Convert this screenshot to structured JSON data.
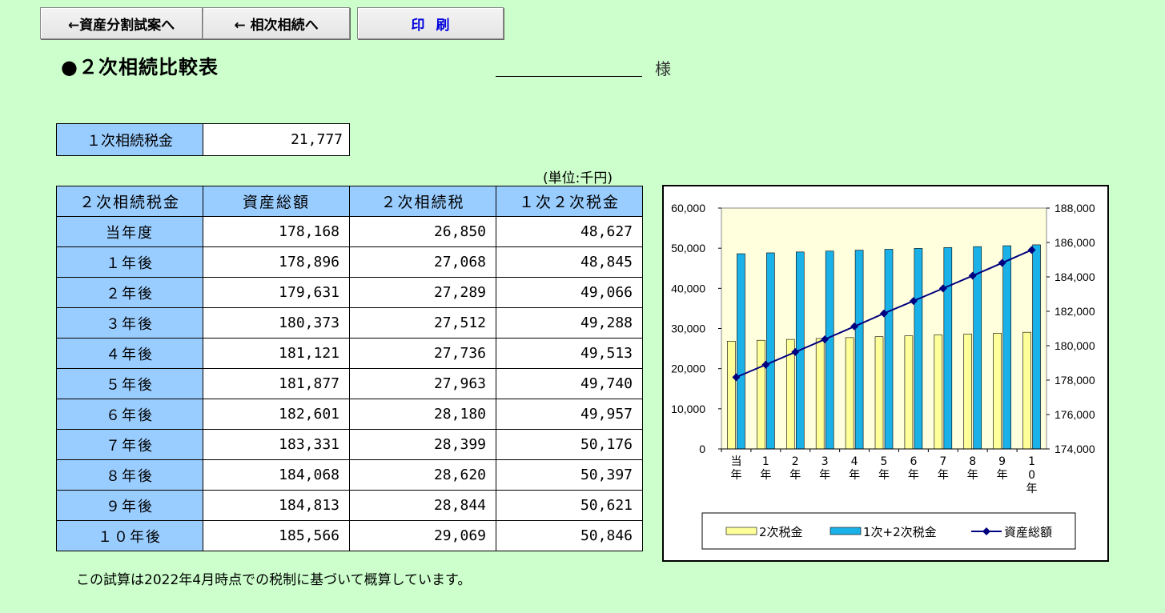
{
  "toolbar": {
    "back_division_label": "←資産分割試案へ",
    "back_succession_label": "← 相次相続へ",
    "print_label": "印刷"
  },
  "page": {
    "title": "●２次相続比較表",
    "honorific": "様",
    "unit": "(単位:千円)",
    "footnote": "この試算は2022年4月時点での税制に基づいて概算しています。"
  },
  "first_tax": {
    "label": "１次相続税金",
    "value": "21,777"
  },
  "table": {
    "headers": [
      "２次相続税金",
      "資産総額",
      "２次相続税",
      "１次２次税金"
    ],
    "rows": [
      {
        "label": "当年度",
        "assets": "178,168",
        "second": "26,850",
        "total": "48,627"
      },
      {
        "label": "１年後",
        "assets": "178,896",
        "second": "27,068",
        "total": "48,845"
      },
      {
        "label": "２年後",
        "assets": "179,631",
        "second": "27,289",
        "total": "49,066"
      },
      {
        "label": "３年後",
        "assets": "180,373",
        "second": "27,512",
        "total": "49,288"
      },
      {
        "label": "４年後",
        "assets": "181,121",
        "second": "27,736",
        "total": "49,513"
      },
      {
        "label": "５年後",
        "assets": "181,877",
        "second": "27,963",
        "total": "49,740"
      },
      {
        "label": "６年後",
        "assets": "182,601",
        "second": "28,180",
        "total": "49,957"
      },
      {
        "label": "７年後",
        "assets": "183,331",
        "second": "28,399",
        "total": "50,176"
      },
      {
        "label": "８年後",
        "assets": "184,068",
        "second": "28,620",
        "total": "50,397"
      },
      {
        "label": "９年後",
        "assets": "184,813",
        "second": "28,844",
        "total": "50,621"
      },
      {
        "label": "１０年後",
        "assets": "185,566",
        "second": "29,069",
        "total": "50,846"
      }
    ]
  },
  "chart_data": {
    "type": "bar",
    "categories": [
      "当年",
      "1年",
      "2年",
      "3年",
      "4年",
      "5年",
      "6年",
      "7年",
      "8年",
      "9年",
      "10年"
    ],
    "series": [
      {
        "name": "2次税金",
        "type": "bar",
        "axis": "left",
        "color": "#ffff99",
        "values": [
          26850,
          27068,
          27289,
          27512,
          27736,
          27963,
          28180,
          28399,
          28620,
          28844,
          29069
        ]
      },
      {
        "name": "1次+2次税金",
        "type": "bar",
        "axis": "left",
        "color": "#1ab0e8",
        "values": [
          48627,
          48845,
          49066,
          49288,
          49513,
          49740,
          49957,
          50176,
          50397,
          50621,
          50846
        ]
      },
      {
        "name": "資産総額",
        "type": "line",
        "axis": "right",
        "color": "#000080",
        "values": [
          178168,
          178896,
          179631,
          180373,
          181121,
          181877,
          182601,
          183331,
          184068,
          184813,
          185566
        ]
      }
    ],
    "ylim_left": [
      0,
      60000
    ],
    "yticks_left": [
      "0",
      "10,000",
      "20,000",
      "30,000",
      "40,000",
      "50,000",
      "60,000"
    ],
    "ylim_right": [
      174000,
      188000
    ],
    "yticks_right": [
      "174,000",
      "176,000",
      "178,000",
      "180,000",
      "182,000",
      "184,000",
      "186,000",
      "188,000"
    ],
    "xtick_labels": [
      [
        "当",
        "年"
      ],
      [
        "1",
        "年"
      ],
      [
        "2",
        "年"
      ],
      [
        "3",
        "年"
      ],
      [
        "4",
        "年"
      ],
      [
        "5",
        "年"
      ],
      [
        "6",
        "年"
      ],
      [
        "7",
        "年"
      ],
      [
        "8",
        "年"
      ],
      [
        "9",
        "年"
      ],
      [
        "1",
        "0",
        "年"
      ]
    ],
    "legend": [
      "2次税金",
      "1次+2次税金",
      "資産総額"
    ],
    "legend_position": "bottom",
    "plot_background": "#ffffdd"
  }
}
